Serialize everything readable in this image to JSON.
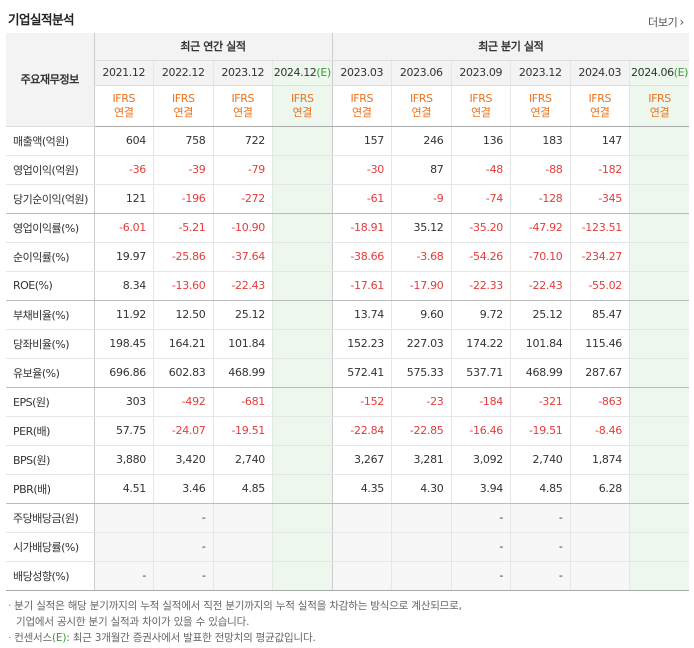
{
  "title": "기업실적분석",
  "more_label": "더보기",
  "header": {
    "row_label": "주요재무정보",
    "group_annual": "최근 연간 실적",
    "group_quarter": "최근 분기 실적",
    "annual_periods": [
      "2021.12",
      "2022.12",
      "2023.12",
      "2024.12"
    ],
    "quarter_periods": [
      "2023.03",
      "2023.06",
      "2023.09",
      "2023.12",
      "2024.03",
      "2024.06"
    ],
    "estimate_marker": "(E)",
    "basis_line1": "IFRS",
    "basis_line2": "연결"
  },
  "rows": [
    {
      "label": "매출액(억원)",
      "annual": [
        "604",
        "758",
        "722",
        ""
      ],
      "quarter": [
        "157",
        "246",
        "136",
        "183",
        "147",
        ""
      ]
    },
    {
      "label": "영업이익(억원)",
      "annual": [
        "-36",
        "-39",
        "-79",
        ""
      ],
      "quarter": [
        "-30",
        "87",
        "-48",
        "-88",
        "-182",
        ""
      ]
    },
    {
      "label": "당기순이익(억원)",
      "annual": [
        "121",
        "-196",
        "-272",
        ""
      ],
      "quarter": [
        "-61",
        "-9",
        "-74",
        "-128",
        "-345",
        ""
      ]
    },
    {
      "label": "영업이익률(%)",
      "annual": [
        "-6.01",
        "-5.21",
        "-10.90",
        ""
      ],
      "quarter": [
        "-18.91",
        "35.12",
        "-35.20",
        "-47.92",
        "-123.51",
        ""
      ]
    },
    {
      "label": "순이익률(%)",
      "annual": [
        "19.97",
        "-25.86",
        "-37.64",
        ""
      ],
      "quarter": [
        "-38.66",
        "-3.68",
        "-54.26",
        "-70.10",
        "-234.27",
        ""
      ]
    },
    {
      "label": "ROE(%)",
      "annual": [
        "8.34",
        "-13.60",
        "-22.43",
        ""
      ],
      "quarter": [
        "-17.61",
        "-17.90",
        "-22.33",
        "-22.43",
        "-55.02",
        ""
      ]
    },
    {
      "label": "부채비율(%)",
      "annual": [
        "11.92",
        "12.50",
        "25.12",
        ""
      ],
      "quarter": [
        "13.74",
        "9.60",
        "9.72",
        "25.12",
        "85.47",
        ""
      ]
    },
    {
      "label": "당좌비율(%)",
      "annual": [
        "198.45",
        "164.21",
        "101.84",
        ""
      ],
      "quarter": [
        "152.23",
        "227.03",
        "174.22",
        "101.84",
        "115.46",
        ""
      ]
    },
    {
      "label": "유보율(%)",
      "annual": [
        "696.86",
        "602.83",
        "468.99",
        ""
      ],
      "quarter": [
        "572.41",
        "575.33",
        "537.71",
        "468.99",
        "287.67",
        ""
      ]
    },
    {
      "label": "EPS(원)",
      "annual": [
        "303",
        "-492",
        "-681",
        ""
      ],
      "quarter": [
        "-152",
        "-23",
        "-184",
        "-321",
        "-863",
        ""
      ]
    },
    {
      "label": "PER(배)",
      "annual": [
        "57.75",
        "-24.07",
        "-19.51",
        ""
      ],
      "quarter": [
        "-22.84",
        "-22.85",
        "-16.46",
        "-19.51",
        "-8.46",
        ""
      ]
    },
    {
      "label": "BPS(원)",
      "annual": [
        "3,880",
        "3,420",
        "2,740",
        ""
      ],
      "quarter": [
        "3,267",
        "3,281",
        "3,092",
        "2,740",
        "1,874",
        ""
      ]
    },
    {
      "label": "PBR(배)",
      "annual": [
        "4.51",
        "3.46",
        "4.85",
        ""
      ],
      "quarter": [
        "4.35",
        "4.30",
        "3.94",
        "4.85",
        "6.28",
        ""
      ]
    },
    {
      "label": "주당배당금(원)",
      "annual": [
        "",
        "-",
        "",
        ""
      ],
      "quarter": [
        "",
        "",
        "-",
        "-",
        "",
        ""
      ]
    },
    {
      "label": "시가배당률(%)",
      "annual": [
        "",
        "-",
        "",
        ""
      ],
      "quarter": [
        "",
        "",
        "-",
        "-",
        "",
        ""
      ]
    },
    {
      "label": "배당성향(%)",
      "annual": [
        "-",
        "-",
        "",
        ""
      ],
      "quarter": [
        "",
        "",
        "-",
        "-",
        "",
        ""
      ]
    }
  ],
  "notes": {
    "note1_line1": "분기 실적은 해당 분기까지의 누적 실적에서 직전 분기까지의 누적 실적을 차감하는 방식으로 계산되므로,",
    "note1_line2": "기업에서 공시한 분기 실적과 차이가 있을 수 있습니다.",
    "note2_prefix": "컨센서스",
    "note2_marker": "(E)",
    "note2_text": ": 최근 3개월간 증권사에서 발표한 전망치의 평균값입니다."
  },
  "colors": {
    "negative": "#e33c3c",
    "basis": "#e8731e",
    "estimate_bg": "#eef7ee",
    "estimate_marker": "#3a9a3a"
  }
}
